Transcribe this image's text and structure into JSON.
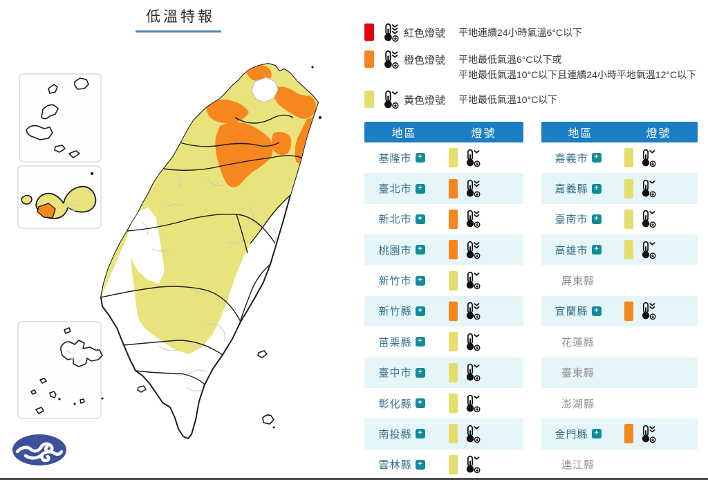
{
  "title": {
    "text": "低溫特報"
  },
  "ui": {
    "expand_symbol": "+"
  },
  "colors": {
    "red": "#e60012",
    "orange": "#f5861f",
    "yellow": "#e4de6c",
    "header_blue": "#1b7ec2",
    "row_alt": "#e6f5f8",
    "region_text": "#33708a",
    "muted_text": "#919191",
    "badge_teal": "#0f8b99",
    "map_yellow": "#e9e37e",
    "map_orange": "#f6871f",
    "logo_blue": "#3c5199",
    "underline_blue": "#4f86b8"
  },
  "signal_severity": {
    "red": 3,
    "orange": 2,
    "yellow": 1
  },
  "legend": {
    "items": [
      {
        "id": "red",
        "label": "紅色燈號",
        "desc_lines": [
          "平地連續24小時氣溫6°C以下"
        ]
      },
      {
        "id": "orange",
        "label": "橙色燈號",
        "desc_lines": [
          "平地最低氣溫6°C以下或",
          "平地最低氣溫10°C以下且連續24小時平地氣溫12°C以下"
        ]
      },
      {
        "id": "yellow",
        "label": "黃色燈號",
        "desc_lines": [
          "平地最低氣溫10°C以下"
        ]
      }
    ]
  },
  "tables": [
    {
      "id": "left",
      "headers": {
        "region": "地區",
        "signal": "燈號"
      },
      "rows": [
        {
          "region": "基隆市",
          "signal": "yellow",
          "expandable": true
        },
        {
          "region": "臺北市",
          "signal": "orange",
          "expandable": true
        },
        {
          "region": "新北市",
          "signal": "orange",
          "expandable": true
        },
        {
          "region": "桃園市",
          "signal": "orange",
          "expandable": true
        },
        {
          "region": "新竹市",
          "signal": "yellow",
          "expandable": true
        },
        {
          "region": "新竹縣",
          "signal": "orange",
          "expandable": true
        },
        {
          "region": "苗栗縣",
          "signal": "yellow",
          "expandable": true
        },
        {
          "region": "臺中市",
          "signal": "yellow",
          "expandable": true
        },
        {
          "region": "彰化縣",
          "signal": "yellow",
          "expandable": true
        },
        {
          "region": "南投縣",
          "signal": "yellow",
          "expandable": true
        },
        {
          "region": "雲林縣",
          "signal": "yellow",
          "expandable": true
        }
      ]
    },
    {
      "id": "right",
      "headers": {
        "region": "地區",
        "signal": "燈號"
      },
      "rows": [
        {
          "region": "嘉義市",
          "signal": "yellow",
          "expandable": true
        },
        {
          "region": "嘉義縣",
          "signal": "yellow",
          "expandable": true
        },
        {
          "region": "臺南市",
          "signal": "yellow",
          "expandable": true
        },
        {
          "region": "高雄市",
          "signal": "yellow",
          "expandable": true
        },
        {
          "region": "屏東縣",
          "signal": "none",
          "expandable": false
        },
        {
          "region": "宜蘭縣",
          "signal": "orange",
          "expandable": true
        },
        {
          "region": "花蓮縣",
          "signal": "none",
          "expandable": false
        },
        {
          "region": "臺東縣",
          "signal": "none",
          "expandable": false
        },
        {
          "region": "澎湖縣",
          "signal": "none",
          "expandable": false
        },
        {
          "region": "金門縣",
          "signal": "orange",
          "expandable": true
        },
        {
          "region": "連江縣",
          "signal": "none",
          "expandable": false
        }
      ]
    }
  ],
  "map": {
    "regions_orange": [
      "臺北市北部",
      "新北市",
      "桃園市",
      "新竹縣",
      "宜蘭縣北部",
      "金門縣西南"
    ],
    "regions_yellow": [
      "西部平原",
      "中部山區",
      "宜蘭縣",
      "金門縣"
    ],
    "insets": [
      "馬祖列島",
      "金門",
      "澎湖群島"
    ]
  }
}
